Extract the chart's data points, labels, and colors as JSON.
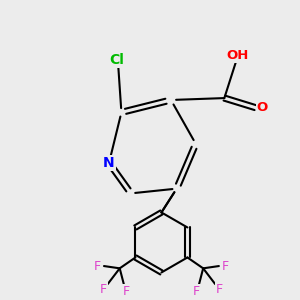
{
  "background_color": "#ececec",
  "atom_colors": {
    "C": "#000000",
    "N": "#0000ff",
    "O": "#ff0000",
    "Cl": "#00bb00",
    "F": "#dd44cc",
    "H": "#557777"
  },
  "figsize": [
    3.0,
    3.0
  ],
  "dpi": 100
}
